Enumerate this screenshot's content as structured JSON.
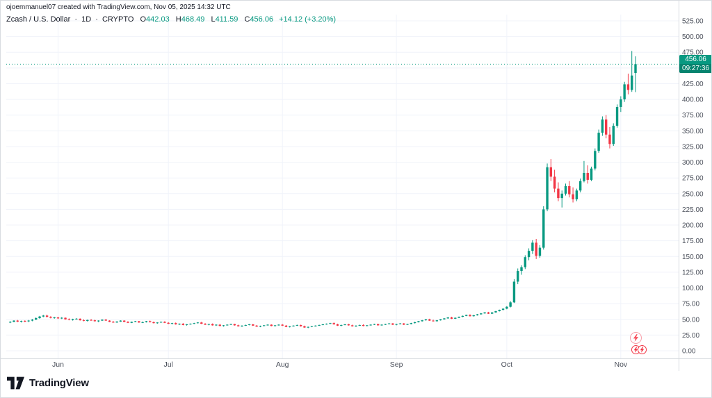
{
  "attribution": "ojoemmanuel07 created with TradingView.com, Nov 05, 2025 14:32 UTC",
  "legend": {
    "symbol": "Zcash / U.S. Dollar",
    "separator": "·",
    "interval": "1D",
    "market": "CRYPTO",
    "o_label": "O",
    "o_value": "442.03",
    "h_label": "H",
    "h_value": "468.49",
    "l_label": "L",
    "l_value": "411.59",
    "c_label": "C",
    "c_value": "456.06",
    "change": "+14.12 (+3.20%)"
  },
  "price_label": {
    "price": "456.06",
    "countdown": "09:27:36"
  },
  "footer": {
    "brand": "TradingView"
  },
  "colors": {
    "up": "#089981",
    "down": "#f23645",
    "grid": "#f0f3fa",
    "axis_line": "#d6dadf",
    "axis_text": "#4a4f5a"
  },
  "chart_data": {
    "type": "candlestick",
    "title": "Zcash / U.S. Dollar, 1D, CRYPTO",
    "ylim": [
      0,
      525
    ],
    "y_tick_step": 25,
    "y_ticks": [
      "0.00",
      "25.00",
      "50.00",
      "75.00",
      "100.00",
      "125.00",
      "150.00",
      "175.00",
      "200.00",
      "225.00",
      "250.00",
      "275.00",
      "300.00",
      "325.00",
      "350.00",
      "375.00",
      "400.00",
      "425.00",
      "450.00",
      "475.00",
      "500.00",
      "525.00"
    ],
    "x_ticks": [
      {
        "i": 13,
        "label": "Jun"
      },
      {
        "i": 43,
        "label": "Jul"
      },
      {
        "i": 74,
        "label": "Aug"
      },
      {
        "i": 105,
        "label": "Sep"
      },
      {
        "i": 135,
        "label": "Oct"
      },
      {
        "i": 166,
        "label": "Nov"
      }
    ],
    "last_price": 456.06,
    "candles": [
      [
        45,
        47,
        44,
        46
      ],
      [
        46,
        48.5,
        45.5,
        48
      ],
      [
        48,
        49,
        45.5,
        46.5
      ],
      [
        46.5,
        48,
        45,
        47.5
      ],
      [
        47.5,
        48.5,
        45.5,
        46.5
      ],
      [
        47,
        49,
        45.5,
        48
      ],
      [
        48,
        50.5,
        47,
        49.5
      ],
      [
        49.5,
        53,
        49,
        52
      ],
      [
        52,
        55.5,
        51,
        54.5
      ],
      [
        54.5,
        57,
        53.5,
        56
      ],
      [
        56,
        57.5,
        53,
        54
      ],
      [
        54,
        55,
        51.5,
        52.5
      ],
      [
        52.5,
        54,
        51,
        53
      ],
      [
        53,
        54,
        50.5,
        51.5
      ],
      [
        51.5,
        53.5,
        50.5,
        52.5
      ],
      [
        52.5,
        53,
        49.5,
        50
      ],
      [
        50,
        51.5,
        48.5,
        49
      ],
      [
        49,
        51,
        48,
        50.5
      ],
      [
        50.5,
        52,
        49.5,
        51
      ],
      [
        51,
        51.5,
        48,
        48.5
      ],
      [
        48.5,
        50,
        47,
        47.5
      ],
      [
        47.5,
        49.5,
        46.5,
        49
      ],
      [
        49,
        50.5,
        48,
        48.5
      ],
      [
        48.5,
        49.5,
        46.5,
        47
      ],
      [
        47,
        48.5,
        45.5,
        48
      ],
      [
        48,
        50,
        47.5,
        49.5
      ],
      [
        49.5,
        50.5,
        47.5,
        48
      ],
      [
        48,
        48.5,
        45.5,
        46
      ],
      [
        46,
        47.5,
        44.5,
        45
      ],
      [
        45,
        47,
        44.5,
        46.5
      ],
      [
        46.5,
        48.5,
        46,
        48
      ],
      [
        48,
        48.5,
        45.5,
        46
      ],
      [
        46,
        47,
        44,
        44.5
      ],
      [
        44.5,
        46.5,
        44,
        46
      ],
      [
        46,
        47.5,
        45.5,
        47
      ],
      [
        47,
        47.5,
        44.5,
        45
      ],
      [
        45,
        46.5,
        44,
        45.5
      ],
      [
        45.5,
        47.5,
        45,
        47
      ],
      [
        47,
        48,
        45,
        45.5
      ],
      [
        45.5,
        46.5,
        43.5,
        44
      ],
      [
        44,
        45.5,
        43,
        45
      ],
      [
        45,
        46.5,
        44.5,
        46
      ],
      [
        46,
        47,
        44,
        44.5
      ],
      [
        44.5,
        45.5,
        42.5,
        43
      ],
      [
        43,
        44.5,
        42,
        44
      ],
      [
        44,
        45,
        41.5,
        42
      ],
      [
        42,
        43.5,
        41,
        43
      ],
      [
        43,
        44,
        40.5,
        41
      ],
      [
        41,
        42.5,
        40,
        42
      ],
      [
        42,
        43.5,
        41.5,
        43
      ],
      [
        43,
        44.5,
        42.5,
        44
      ],
      [
        44,
        45.5,
        43.5,
        45
      ],
      [
        45,
        46,
        42.5,
        43
      ],
      [
        43,
        44,
        41,
        41.5
      ],
      [
        41.5,
        43,
        40.5,
        42.5
      ],
      [
        42.5,
        43.5,
        40,
        40.5
      ],
      [
        40.5,
        42,
        39.5,
        41.5
      ],
      [
        41.5,
        42.5,
        39,
        39.5
      ],
      [
        39.5,
        41,
        38.5,
        40.5
      ],
      [
        40.5,
        42,
        40,
        41.5
      ],
      [
        41.5,
        43,
        41,
        42.5
      ],
      [
        42.5,
        43,
        40,
        40.5
      ],
      [
        40.5,
        41.5,
        38.5,
        39
      ],
      [
        39,
        40.5,
        38,
        40
      ],
      [
        40,
        41.5,
        39.5,
        41
      ],
      [
        41,
        42.5,
        40.5,
        42
      ],
      [
        42,
        42.5,
        39.5,
        40
      ],
      [
        40,
        41,
        38,
        38.5
      ],
      [
        38.5,
        40,
        37.5,
        39.5
      ],
      [
        39.5,
        41,
        39,
        40.5
      ],
      [
        40.5,
        42,
        40,
        41.5
      ],
      [
        41.5,
        42,
        39,
        39.5
      ],
      [
        39.5,
        41,
        38.5,
        40.5
      ],
      [
        40.5,
        42,
        40,
        41.5
      ],
      [
        41.5,
        42.5,
        39.5,
        40
      ],
      [
        40,
        41,
        37.5,
        38
      ],
      [
        38,
        39.5,
        37,
        39
      ],
      [
        39,
        40.5,
        38.5,
        40
      ],
      [
        40,
        41.5,
        39.5,
        41
      ],
      [
        41,
        41.5,
        38.5,
        39
      ],
      [
        39,
        40,
        36.5,
        37
      ],
      [
        37,
        38.5,
        36,
        38
      ],
      [
        38,
        39.5,
        37.5,
        39
      ],
      [
        39,
        40.5,
        38.5,
        40
      ],
      [
        40,
        41.5,
        39.5,
        41
      ],
      [
        41,
        42.5,
        40.5,
        42
      ],
      [
        42,
        43.5,
        41.5,
        43
      ],
      [
        43,
        44.5,
        42.5,
        44
      ],
      [
        44,
        45,
        41.5,
        42
      ],
      [
        42,
        43,
        39.5,
        40
      ],
      [
        40,
        41.5,
        39,
        41
      ],
      [
        41,
        42.5,
        40.5,
        42
      ],
      [
        42,
        43,
        40,
        40.5
      ],
      [
        40.5,
        41.5,
        38.5,
        39
      ],
      [
        39,
        40.5,
        38,
        40
      ],
      [
        40,
        41.5,
        39.5,
        41
      ],
      [
        41,
        42,
        39,
        39.5
      ],
      [
        39.5,
        41,
        39,
        40.5
      ],
      [
        40.5,
        42,
        40,
        41.5
      ],
      [
        41.5,
        43,
        41,
        42.5
      ],
      [
        42.5,
        43,
        40,
        40.5
      ],
      [
        40.5,
        42,
        40,
        41.5
      ],
      [
        41.5,
        43,
        41,
        42.5
      ],
      [
        42.5,
        44,
        42,
        43.5
      ],
      [
        43.5,
        44,
        41,
        41.5
      ],
      [
        41.5,
        43,
        40.5,
        42.5
      ],
      [
        42.5,
        44,
        42,
        43.5
      ],
      [
        43.5,
        44,
        41,
        41.5
      ],
      [
        41.5,
        43,
        41,
        42.5
      ],
      [
        42.5,
        44.5,
        42,
        44
      ],
      [
        44,
        46,
        43.5,
        45.5
      ],
      [
        45.5,
        47.5,
        45,
        47
      ],
      [
        47,
        49,
        46.5,
        48.5
      ],
      [
        48.5,
        50.5,
        48,
        50
      ],
      [
        50,
        51,
        47.5,
        48
      ],
      [
        48,
        49.5,
        46.5,
        47
      ],
      [
        47,
        49,
        46.5,
        48.5
      ],
      [
        48.5,
        50.5,
        48,
        50
      ],
      [
        50,
        52,
        49.5,
        51.5
      ],
      [
        51.5,
        53.5,
        51,
        53
      ],
      [
        53,
        54,
        50.5,
        51
      ],
      [
        51,
        53,
        50.5,
        52.5
      ],
      [
        52.5,
        54.5,
        52,
        54
      ],
      [
        54,
        56,
        53.5,
        55.5
      ],
      [
        55.5,
        57.5,
        55,
        57
      ],
      [
        57,
        58,
        54.5,
        55
      ],
      [
        55,
        57,
        54.5,
        56.5
      ],
      [
        56.5,
        58.5,
        56,
        58
      ],
      [
        58,
        60,
        57.5,
        59.5
      ],
      [
        59.5,
        61.5,
        59,
        61
      ],
      [
        61,
        62,
        58.5,
        59
      ],
      [
        59,
        61.5,
        58.5,
        61
      ],
      [
        61,
        63.5,
        60.5,
        63
      ],
      [
        63,
        65.5,
        62.5,
        65
      ],
      [
        65,
        67.5,
        64.5,
        67
      ],
      [
        67,
        71,
        66,
        70
      ],
      [
        70,
        79,
        69,
        77
      ],
      [
        77,
        114,
        76,
        110
      ],
      [
        110,
        131,
        106,
        127
      ],
      [
        127,
        136,
        121,
        133
      ],
      [
        133,
        152,
        130,
        149
      ],
      [
        149,
        163,
        144,
        159
      ],
      [
        159,
        176,
        154,
        172
      ],
      [
        172,
        178,
        146,
        151
      ],
      [
        151,
        168,
        148,
        164
      ],
      [
        164,
        230,
        161,
        225
      ],
      [
        225,
        298,
        222,
        292
      ],
      [
        292,
        305,
        270,
        277
      ],
      [
        277,
        288,
        252,
        258
      ],
      [
        258,
        268,
        238,
        243
      ],
      [
        243,
        255,
        228,
        250
      ],
      [
        250,
        266,
        247,
        262
      ],
      [
        262,
        270,
        244,
        249
      ],
      [
        249,
        260,
        236,
        241
      ],
      [
        241,
        258,
        238,
        255
      ],
      [
        255,
        274,
        252,
        270
      ],
      [
        270,
        302,
        268,
        283
      ],
      [
        283,
        295,
        266,
        272
      ],
      [
        272,
        293,
        270,
        290
      ],
      [
        290,
        322,
        287,
        318
      ],
      [
        318,
        352,
        315,
        347
      ],
      [
        347,
        373,
        342,
        368
      ],
      [
        368,
        375,
        338,
        344
      ],
      [
        344,
        356,
        322,
        329
      ],
      [
        329,
        362,
        326,
        358
      ],
      [
        358,
        392,
        355,
        388
      ],
      [
        388,
        405,
        380,
        400
      ],
      [
        400,
        428,
        396,
        424
      ],
      [
        424,
        441,
        408,
        415
      ],
      [
        415,
        477,
        412,
        438
      ],
      [
        442.03,
        468.49,
        411.59,
        456.06
      ]
    ]
  }
}
